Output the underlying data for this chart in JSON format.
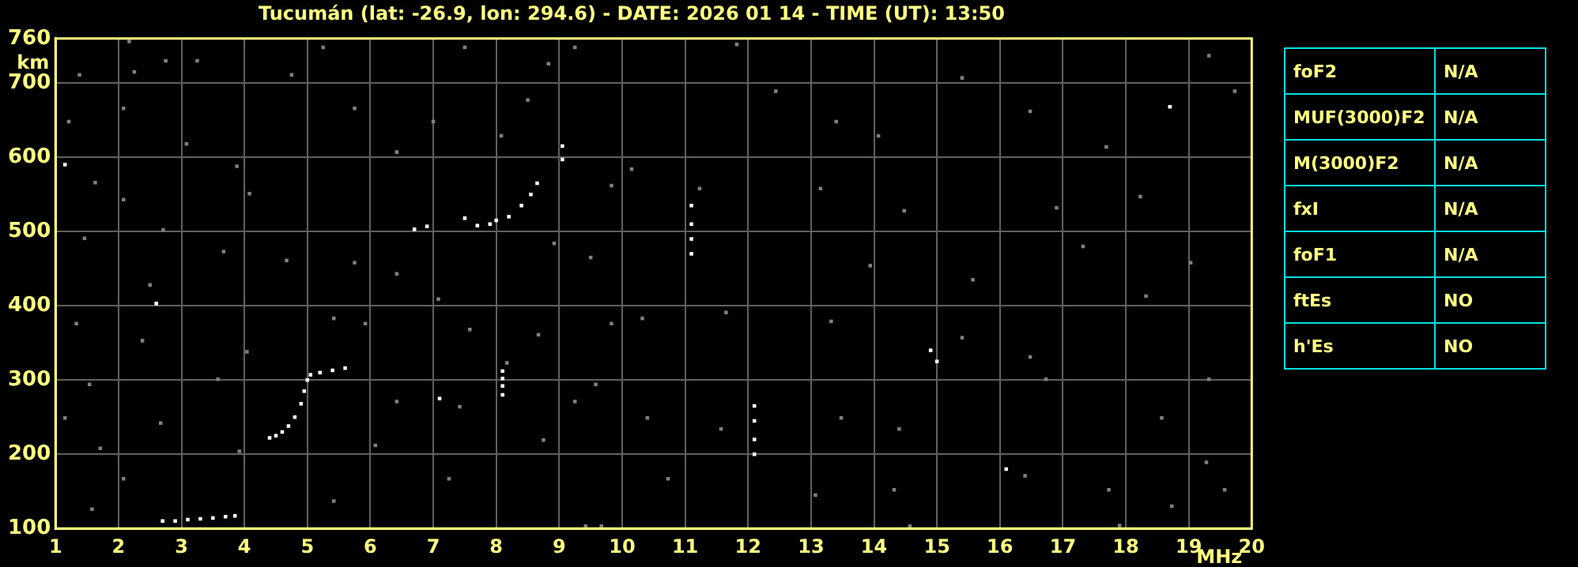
{
  "chart_data": [
    {
      "type": "scatter",
      "title": "Tucumán (lat: -26.9, lon: 294.6) - DATE: 2026 01 14 - TIME (UT): 13:50",
      "xlabel": "MHz",
      "ylabel": "km",
      "xlim": [
        1,
        20
      ],
      "ylim": [
        100,
        760
      ],
      "xticks": [
        1,
        2,
        3,
        4,
        5,
        6,
        7,
        8,
        9,
        10,
        11,
        12,
        13,
        14,
        15,
        16,
        17,
        18,
        19,
        20
      ],
      "yticks": [
        100,
        200,
        300,
        400,
        500,
        600,
        700,
        760
      ],
      "grid": true,
      "legend": false,
      "marker": "square",
      "series": [
        {
          "color": "#808080",
          "x": [
            2.17,
            1.38,
            2.25,
            2.75,
            3.25,
            1.21,
            2.08,
            3.08,
            3.88,
            1.63,
            2.08,
            4.08,
            2.71,
            1.46,
            3.67,
            4.67,
            2.5,
            1.33,
            2.38,
            4.04,
            1.54,
            3.58,
            1.15,
            2.67,
            1.71,
            3.92,
            2.08,
            1.58,
            5.42,
            5.92,
            5.42,
            5.75,
            6.42,
            7.08,
            7.58,
            6.42,
            7.42,
            6.08,
            7.25,
            8.75,
            9.25,
            9.58,
            8.17,
            8.67,
            9.5,
            8.92,
            6.42,
            7.0,
            8.08,
            8.5,
            5.75,
            4.75,
            5.25,
            7.5,
            9.25,
            8.83,
            9.83,
            9.83,
            9.42,
            9.67,
            11.82,
            12.44,
            13.4,
            14.07,
            15.4,
            16.48,
            17.69,
            19.32,
            19.73,
            10.15,
            11.23,
            13.15,
            14.48,
            16.9,
            18.23,
            13.94,
            15.57,
            17.32,
            19.03,
            10.32,
            11.65,
            13.32,
            15.4,
            16.48,
            18.32,
            19.32,
            10.4,
            11.57,
            13.48,
            14.4,
            16.73,
            18.57,
            19.28,
            10.73,
            13.07,
            14.32,
            16.4,
            17.73,
            18.73,
            19.57,
            14.57,
            17.9
          ],
          "values": [
            756,
            711,
            715,
            730,
            730,
            648,
            666,
            618,
            588,
            566,
            543,
            551,
            502,
            491,
            473,
            461,
            428,
            376,
            353,
            338,
            294,
            301,
            249,
            242,
            208,
            204,
            167,
            126,
            137,
            376,
            383,
            458,
            443,
            409,
            368,
            271,
            264,
            212,
            167,
            219,
            271,
            294,
            323,
            361,
            465,
            484,
            607,
            648,
            629,
            677,
            666,
            711,
            748,
            748,
            748,
            726,
            562,
            376,
            103,
            103,
            752,
            689,
            648,
            629,
            707,
            662,
            614,
            737,
            689,
            584,
            558,
            558,
            528,
            532,
            547,
            454,
            435,
            480,
            458,
            383,
            391,
            379,
            357,
            331,
            413,
            301,
            249,
            234,
            249,
            234,
            301,
            249,
            189,
            167,
            145,
            152,
            171,
            152,
            130,
            152,
            103,
            104
          ]
        },
        {
          "color": "#ffffff",
          "x": [
            2.7,
            2.9,
            3.1,
            3.3,
            3.5,
            3.7,
            3.85,
            4.4,
            4.5,
            4.6,
            4.7,
            4.8,
            4.9,
            4.95,
            5.0,
            5.05,
            5.2,
            5.4,
            5.6,
            6.7,
            6.9,
            7.5,
            7.7,
            7.9,
            8.0,
            8.2,
            8.4,
            8.55,
            8.65,
            8.1,
            8.1,
            8.1,
            8.1,
            11.1,
            11.1,
            11.1,
            11.1,
            12.1,
            12.1,
            12.1,
            12.1,
            9.05,
            9.05,
            2.6,
            1.15,
            7.1,
            14.9,
            15.0,
            18.7,
            16.1
          ],
          "values": [
            110,
            110,
            112,
            113,
            114,
            116,
            117,
            222,
            225,
            230,
            238,
            250,
            268,
            285,
            300,
            307,
            310,
            313,
            316,
            503,
            507,
            518,
            508,
            510,
            515,
            520,
            535,
            550,
            565,
            280,
            292,
            302,
            312,
            470,
            490,
            510,
            535,
            200,
            220,
            245,
            265,
            597,
            615,
            403,
            590,
            275,
            340,
            325,
            668,
            180
          ]
        }
      ]
    },
    {
      "type": "other",
      "annotations": [
        "foF2",
        "N/A",
        "MUF(3000)F2",
        "N/A",
        "M(3000)F2",
        "N/A",
        "fxI",
        "N/A",
        "foF1",
        "N/A",
        "ftEs",
        "NO",
        "h'Es",
        "NO"
      ]
    }
  ]
}
